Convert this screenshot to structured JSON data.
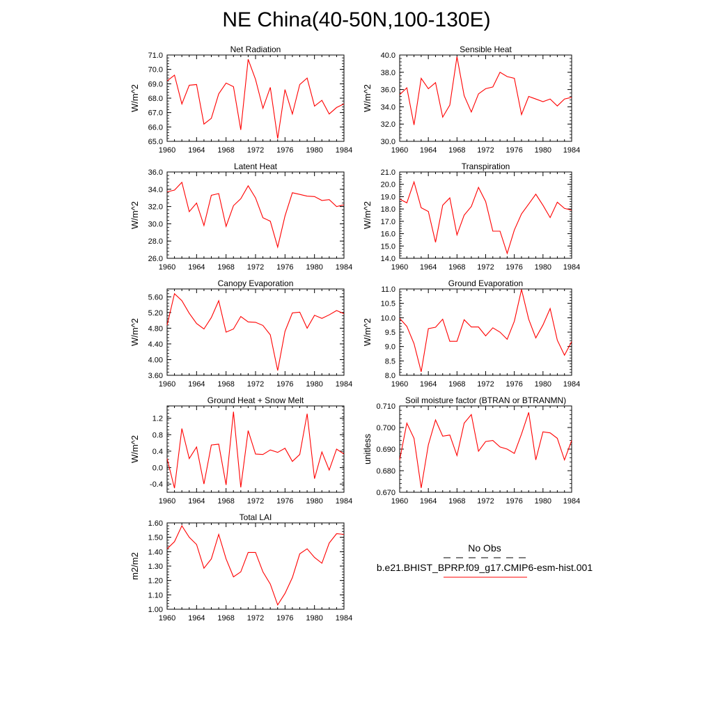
{
  "figure": {
    "title": "NE China(40-50N,100-130E)"
  },
  "legend": {
    "obs_label": "No Obs",
    "model_label": "b.e21.BHIST_BPRP.f09_g17.CMIP6-esm-hist.001",
    "obs_style": "dashed",
    "obs_color": "#000000",
    "model_color": "#ff0000"
  },
  "chart_data": [
    {
      "type": "line",
      "title": "Net Radiation",
      "ylabel": "W/m^2",
      "x": [
        1960,
        1961,
        1962,
        1963,
        1964,
        1965,
        1966,
        1967,
        1968,
        1969,
        1970,
        1971,
        1972,
        1973,
        1974,
        1975,
        1976,
        1977,
        1978,
        1979,
        1980,
        1981,
        1982,
        1983,
        1984
      ],
      "xticks": [
        1960,
        1964,
        1968,
        1972,
        1976,
        1980,
        1984
      ],
      "xlim": [
        1960,
        1984
      ],
      "ylim": [
        65.0,
        71.0
      ],
      "yticks": [
        65.0,
        66.0,
        67.0,
        68.0,
        69.0,
        70.0,
        71.0
      ],
      "ytick_labels": [
        "65.0",
        "66.0",
        "67.0",
        "68.0",
        "69.0",
        "70.0",
        "71.0"
      ],
      "series": [
        {
          "values": [
            69.2,
            69.6,
            67.6,
            68.9,
            68.95,
            66.2,
            66.6,
            68.3,
            69.05,
            68.8,
            65.8,
            70.7,
            69.3,
            67.3,
            68.75,
            65.2,
            68.6,
            66.9,
            68.95,
            69.4,
            67.45,
            67.85,
            66.9,
            67.35,
            67.6
          ],
          "color": "#ff0000"
        }
      ]
    },
    {
      "type": "line",
      "title": "Sensible Heat",
      "ylabel": "W/m^2",
      "x": [
        1960,
        1961,
        1962,
        1963,
        1964,
        1965,
        1966,
        1967,
        1968,
        1969,
        1970,
        1971,
        1972,
        1973,
        1974,
        1975,
        1976,
        1977,
        1978,
        1979,
        1980,
        1981,
        1982,
        1983,
        1984
      ],
      "xticks": [
        1960,
        1964,
        1968,
        1972,
        1976,
        1980,
        1984
      ],
      "xlim": [
        1960,
        1984
      ],
      "ylim": [
        30.0,
        40.0
      ],
      "yticks": [
        30.0,
        32.0,
        34.0,
        36.0,
        38.0,
        40.0
      ],
      "ytick_labels": [
        "30.0",
        "32.0",
        "34.0",
        "36.0",
        "38.0",
        "40.0"
      ],
      "series": [
        {
          "values": [
            35.4,
            36.2,
            31.9,
            37.3,
            36.1,
            36.8,
            32.8,
            34.2,
            39.8,
            35.3,
            33.4,
            35.5,
            36.1,
            36.3,
            38.0,
            37.5,
            37.3,
            33.1,
            35.2,
            34.9,
            34.6,
            34.9,
            34.1,
            34.9,
            35.1
          ],
          "color": "#ff0000"
        }
      ]
    },
    {
      "type": "line",
      "title": "Latent Heat",
      "ylabel": "W/m^2",
      "x": [
        1960,
        1961,
        1962,
        1963,
        1964,
        1965,
        1966,
        1967,
        1968,
        1969,
        1970,
        1971,
        1972,
        1973,
        1974,
        1975,
        1976,
        1977,
        1978,
        1979,
        1980,
        1981,
        1982,
        1983,
        1984
      ],
      "xticks": [
        1960,
        1964,
        1968,
        1972,
        1976,
        1980,
        1984
      ],
      "xlim": [
        1960,
        1984
      ],
      "ylim": [
        26.0,
        36.0
      ],
      "yticks": [
        26.0,
        28.0,
        30.0,
        32.0,
        34.0,
        36.0
      ],
      "ytick_labels": [
        "26.0",
        "28.0",
        "30.0",
        "32.0",
        "34.0",
        "36.0"
      ],
      "series": [
        {
          "values": [
            33.7,
            33.9,
            34.8,
            31.4,
            32.4,
            29.8,
            33.3,
            33.5,
            29.7,
            32.1,
            32.9,
            34.4,
            33.0,
            30.7,
            30.3,
            27.3,
            30.9,
            33.6,
            33.4,
            33.2,
            33.15,
            32.7,
            32.8,
            32.0,
            32.2
          ],
          "color": "#ff0000"
        }
      ]
    },
    {
      "type": "line",
      "title": "Transpiration",
      "ylabel": "W/m^2",
      "x": [
        1960,
        1961,
        1962,
        1963,
        1964,
        1965,
        1966,
        1967,
        1968,
        1969,
        1970,
        1971,
        1972,
        1973,
        1974,
        1975,
        1976,
        1977,
        1978,
        1979,
        1980,
        1981,
        1982,
        1983,
        1984
      ],
      "xticks": [
        1960,
        1964,
        1968,
        1972,
        1976,
        1980,
        1984
      ],
      "xlim": [
        1960,
        1984
      ],
      "ylim": [
        14.0,
        21.0
      ],
      "yticks": [
        14.0,
        15.0,
        16.0,
        17.0,
        18.0,
        19.0,
        20.0,
        21.0
      ],
      "ytick_labels": [
        "14.0",
        "15.0",
        "16.0",
        "17.0",
        "18.0",
        "19.0",
        "20.0",
        "21.0"
      ],
      "series": [
        {
          "values": [
            18.8,
            18.5,
            20.2,
            18.1,
            17.8,
            15.3,
            18.3,
            18.9,
            15.9,
            17.5,
            18.2,
            19.75,
            18.6,
            16.2,
            16.2,
            14.4,
            16.3,
            17.6,
            18.4,
            19.2,
            18.3,
            17.3,
            18.55,
            18.05,
            17.9
          ],
          "color": "#ff0000"
        }
      ]
    },
    {
      "type": "line",
      "title": "Canopy Evaporation",
      "ylabel": "W/m^2",
      "x": [
        1960,
        1961,
        1962,
        1963,
        1964,
        1965,
        1966,
        1967,
        1968,
        1969,
        1970,
        1971,
        1972,
        1973,
        1974,
        1975,
        1976,
        1977,
        1978,
        1979,
        1980,
        1981,
        1982,
        1983,
        1984
      ],
      "xticks": [
        1960,
        1964,
        1968,
        1972,
        1976,
        1980,
        1984
      ],
      "xlim": [
        1960,
        1984
      ],
      "ylim": [
        3.6,
        5.8
      ],
      "yticks": [
        3.6,
        4.0,
        4.4,
        4.8,
        5.2,
        5.6
      ],
      "ytick_labels": [
        "3.60",
        "4.00",
        "4.40",
        "4.80",
        "5.20",
        "5.60"
      ],
      "series": [
        {
          "values": [
            4.88,
            5.68,
            5.5,
            5.18,
            4.92,
            4.78,
            5.07,
            5.5,
            4.7,
            4.78,
            5.1,
            4.96,
            4.95,
            4.87,
            4.63,
            3.72,
            4.72,
            5.19,
            5.21,
            4.8,
            5.13,
            5.05,
            5.14,
            5.25,
            5.17
          ],
          "color": "#ff0000"
        }
      ]
    },
    {
      "type": "line",
      "title": "Ground Evaporation",
      "ylabel": "W/m^2",
      "x": [
        1960,
        1961,
        1962,
        1963,
        1964,
        1965,
        1966,
        1967,
        1968,
        1969,
        1970,
        1971,
        1972,
        1973,
        1974,
        1975,
        1976,
        1977,
        1978,
        1979,
        1980,
        1981,
        1982,
        1983,
        1984
      ],
      "xticks": [
        1960,
        1964,
        1968,
        1972,
        1976,
        1980,
        1984
      ],
      "xlim": [
        1960,
        1984
      ],
      "ylim": [
        8.0,
        11.0
      ],
      "yticks": [
        8.0,
        8.5,
        9.0,
        9.5,
        10.0,
        10.5,
        11.0
      ],
      "ytick_labels": [
        "8.0",
        "8.5",
        "9.0",
        "9.5",
        "10.0",
        "10.5",
        "11.0"
      ],
      "series": [
        {
          "values": [
            9.98,
            9.7,
            9.1,
            8.12,
            9.62,
            9.67,
            9.95,
            9.18,
            9.18,
            9.93,
            9.68,
            9.68,
            9.37,
            9.65,
            9.5,
            9.25,
            9.88,
            10.98,
            9.95,
            9.3,
            9.75,
            10.32,
            9.22,
            8.7,
            9.17
          ],
          "color": "#ff0000"
        }
      ]
    },
    {
      "type": "line",
      "title": "Ground Heat + Snow Melt",
      "ylabel": "W/m^2",
      "x": [
        1960,
        1961,
        1962,
        1963,
        1964,
        1965,
        1966,
        1967,
        1968,
        1969,
        1970,
        1971,
        1972,
        1973,
        1974,
        1975,
        1976,
        1977,
        1978,
        1979,
        1980,
        1981,
        1982,
        1983,
        1984
      ],
      "xticks": [
        1960,
        1964,
        1968,
        1972,
        1976,
        1980,
        1984
      ],
      "xlim": [
        1960,
        1984
      ],
      "ylim": [
        -0.6,
        1.5
      ],
      "yticks": [
        -0.4,
        0.0,
        0.4,
        0.8,
        1.2
      ],
      "ytick_labels": [
        "-0.4",
        "0.0",
        "0.4",
        "0.8",
        "1.2"
      ],
      "series": [
        {
          "values": [
            0.22,
            -0.5,
            0.95,
            0.22,
            0.5,
            -0.4,
            0.55,
            0.57,
            -0.42,
            1.36,
            -0.48,
            0.9,
            0.33,
            0.32,
            0.43,
            0.37,
            0.47,
            0.15,
            0.32,
            1.31,
            -0.27,
            0.38,
            -0.06,
            0.45,
            0.33
          ],
          "color": "#ff0000"
        }
      ]
    },
    {
      "type": "line",
      "title": "Soil moisture factor (BTRAN or BTRANMN)",
      "ylabel": "unitless",
      "x": [
        1960,
        1961,
        1962,
        1963,
        1964,
        1965,
        1966,
        1967,
        1968,
        1969,
        1970,
        1971,
        1972,
        1973,
        1974,
        1975,
        1976,
        1977,
        1978,
        1979,
        1980,
        1981,
        1982,
        1983,
        1984
      ],
      "xticks": [
        1960,
        1964,
        1968,
        1972,
        1976,
        1980,
        1984
      ],
      "xlim": [
        1960,
        1984
      ],
      "ylim": [
        0.67,
        0.71
      ],
      "yticks": [
        0.67,
        0.68,
        0.69,
        0.7,
        0.71
      ],
      "ytick_labels": [
        "0.670",
        "0.680",
        "0.690",
        "0.700",
        "0.710"
      ],
      "series": [
        {
          "values": [
            0.685,
            0.702,
            0.695,
            0.672,
            0.692,
            0.7035,
            0.696,
            0.6965,
            0.687,
            0.702,
            0.706,
            0.689,
            0.6935,
            0.694,
            0.691,
            0.69,
            0.688,
            0.697,
            0.707,
            0.685,
            0.698,
            0.6975,
            0.695,
            0.685,
            0.694
          ],
          "color": "#ff0000"
        }
      ]
    },
    {
      "type": "line",
      "title": "Total LAI",
      "ylabel": "m2/m2",
      "x": [
        1960,
        1961,
        1962,
        1963,
        1964,
        1965,
        1966,
        1967,
        1968,
        1969,
        1970,
        1971,
        1972,
        1973,
        1974,
        1975,
        1976,
        1977,
        1978,
        1979,
        1980,
        1981,
        1982,
        1983,
        1984
      ],
      "xticks": [
        1960,
        1964,
        1968,
        1972,
        1976,
        1980,
        1984
      ],
      "xlim": [
        1960,
        1984
      ],
      "ylim": [
        1.0,
        1.6
      ],
      "yticks": [
        1.0,
        1.1,
        1.2,
        1.3,
        1.4,
        1.5,
        1.6
      ],
      "ytick_labels": [
        "1.00",
        "1.10",
        "1.20",
        "1.30",
        "1.40",
        "1.50",
        "1.60"
      ],
      "series": [
        {
          "values": [
            1.42,
            1.47,
            1.58,
            1.5,
            1.45,
            1.285,
            1.35,
            1.52,
            1.35,
            1.225,
            1.26,
            1.395,
            1.395,
            1.26,
            1.175,
            1.03,
            1.11,
            1.22,
            1.385,
            1.42,
            1.36,
            1.32,
            1.46,
            1.525,
            1.52
          ],
          "color": "#ff0000"
        }
      ]
    }
  ]
}
